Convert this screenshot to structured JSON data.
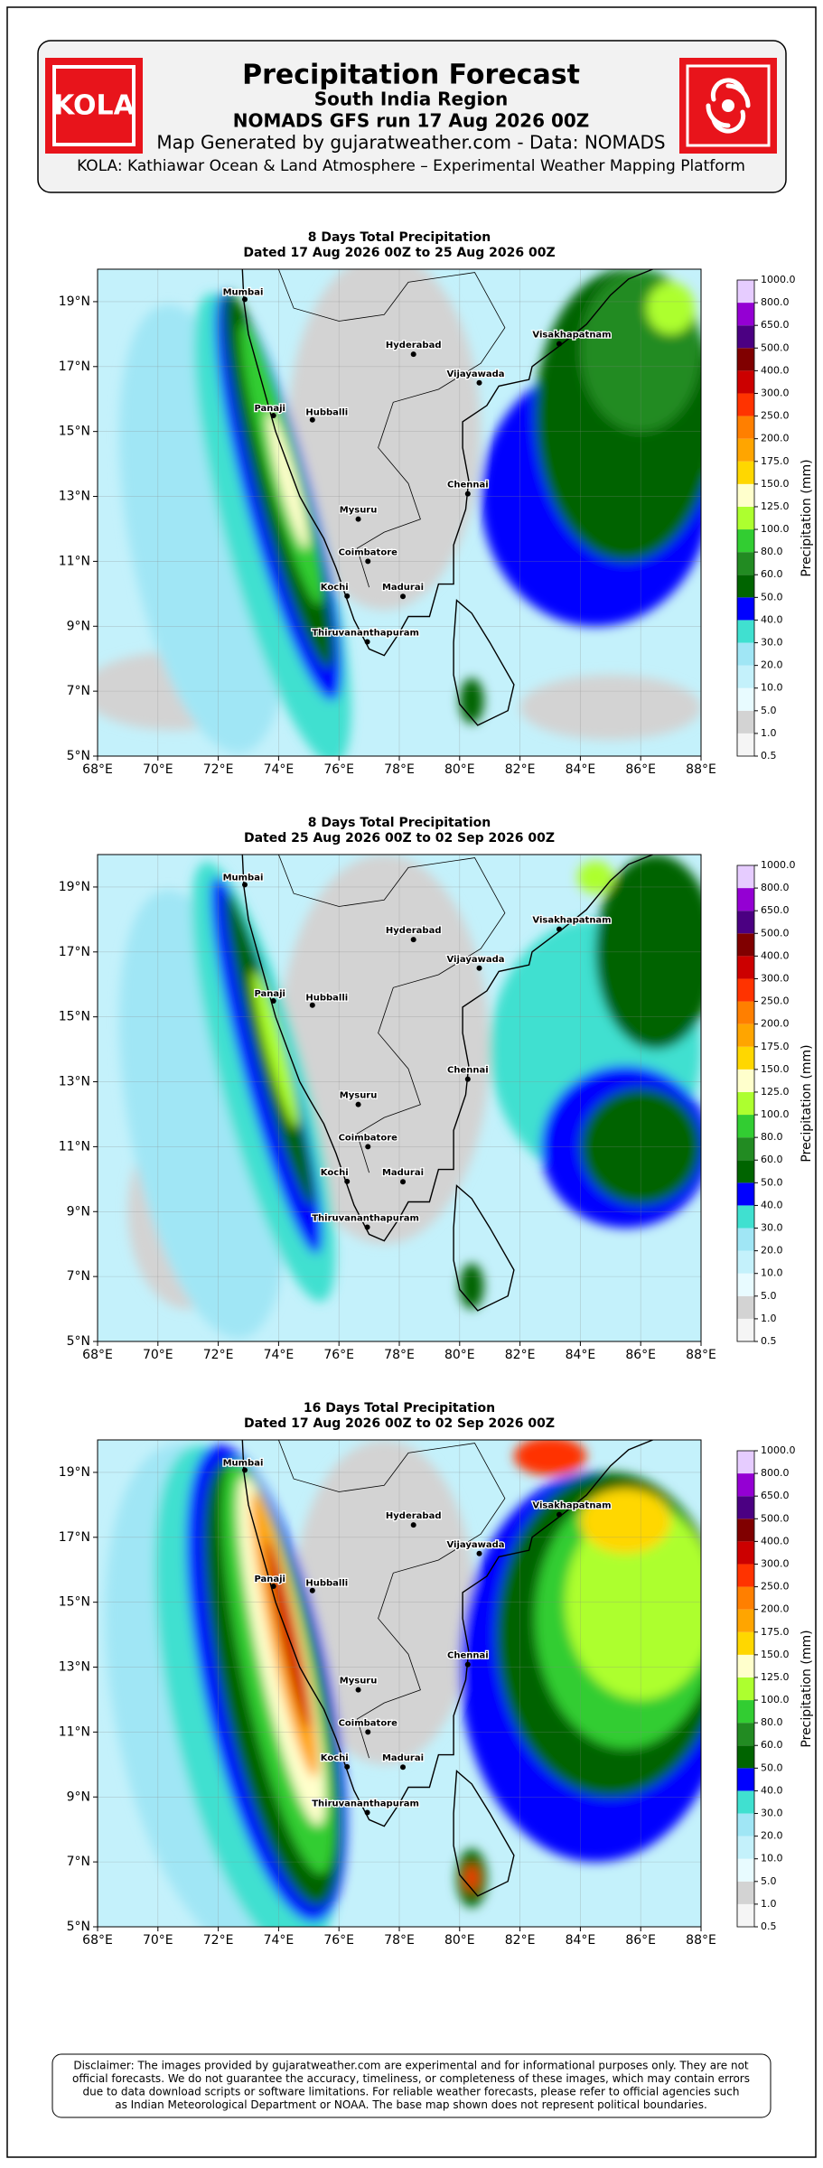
{
  "header": {
    "logo_text": "KOLA",
    "title": "Precipitation Forecast",
    "region": "South India Region",
    "run": "NOMADS GFS run 17 Aug 2026 00Z",
    "source": "Map Generated by gujaratweather.com - Data: NOMADS",
    "platform": "KOLA: Kathiawar Ocean & Land Atmosphere – Experimental Weather Mapping Platform"
  },
  "axes": {
    "x_ticks": [
      "68°E",
      "70°E",
      "72°E",
      "74°E",
      "76°E",
      "78°E",
      "80°E",
      "82°E",
      "84°E",
      "86°E",
      "88°E"
    ],
    "y_ticks": [
      "5°N",
      "7°N",
      "9°N",
      "11°N",
      "13°N",
      "15°N",
      "17°N",
      "19°N"
    ]
  },
  "cities": [
    "Mumbai",
    "Panaji",
    "Hubballi",
    "Hyderabad",
    "Vijayawada",
    "Visakhapatnam",
    "Chennai",
    "Mysuru",
    "Coimbatore",
    "Kochi",
    "Madurai",
    "Thiruvananthapuram"
  ],
  "colorbar": {
    "label": "Precipitation (mm)",
    "levels": [
      "0.5",
      "1.0",
      "5.0",
      "10.0",
      "20.0",
      "30.0",
      "40.0",
      "50.0",
      "60.0",
      "80.0",
      "100.0",
      "125.0",
      "150.0",
      "175.0",
      "200.0",
      "250.0",
      "300.0",
      "400.0",
      "500.0",
      "650.0",
      "800.0",
      "1000.0"
    ],
    "colors": [
      "#f5f5f5",
      "#d3d3d3",
      "#e8fbff",
      "#c4f1fb",
      "#a0e6f5",
      "#40e0d0",
      "#0000ff",
      "#006400",
      "#228b22",
      "#32cd32",
      "#adff2f",
      "#ffffcc",
      "#ffd700",
      "#ffa500",
      "#ff7f00",
      "#ff3300",
      "#cc0000",
      "#800000",
      "#4b0082",
      "#9400d3",
      "#e6ccff"
    ]
  },
  "panels": [
    {
      "title": "8 Days Total Precipitation",
      "subtitle": "Dated 17 Aug 2026 00Z to 25 Aug 2026 00Z"
    },
    {
      "title": "8 Days Total Precipitation",
      "subtitle": "Dated 25 Aug 2026 00Z to 02 Sep 2026 00Z"
    },
    {
      "title": "16 Days Total Precipitation",
      "subtitle": "Dated 17 Aug 2026 00Z to 02 Sep 2026 00Z"
    }
  ],
  "disclaimer": [
    "Disclaimer: The images provided by gujaratweather.com are experimental and for informational purposes only. They are not",
    "official forecasts. We do not guarantee the accuracy, timeliness, or completeness of these images, which may contain errors",
    "due to data download scripts or software limitations. For reliable weather forecasts, please refer to official agencies such",
    "as Indian Meteorological Department or NOAA.                    The base map shown does not represent political boundaries."
  ]
}
